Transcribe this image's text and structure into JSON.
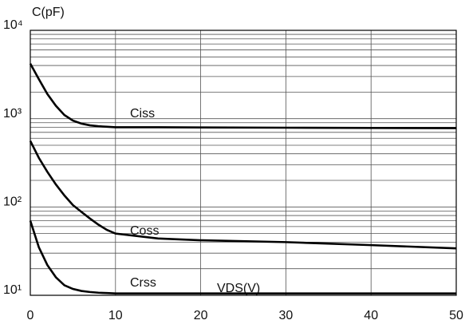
{
  "chart_data": {
    "type": "line",
    "ylabel": "C(pF)",
    "xlabel": "VDS(V)",
    "x": [
      0,
      1,
      2,
      3,
      4,
      5,
      6,
      7,
      8,
      9,
      10,
      15,
      20,
      30,
      40,
      50
    ],
    "series": [
      {
        "name": "Ciss",
        "color": "#000000",
        "values": [
          4200,
          2800,
          1900,
          1400,
          1100,
          950,
          880,
          840,
          820,
          810,
          800,
          800,
          795,
          790,
          785,
          780
        ]
      },
      {
        "name": "Coss",
        "color": "#000000",
        "values": [
          560,
          360,
          250,
          180,
          135,
          105,
          88,
          74,
          63,
          55,
          50,
          44,
          42,
          40,
          37,
          34
        ]
      },
      {
        "name": "Crss",
        "color": "#000000",
        "values": [
          70,
          35,
          22,
          16,
          13,
          11.8,
          11.2,
          10.9,
          10.7,
          10.6,
          10.5,
          10.5,
          10.5,
          10.5,
          10.5,
          10.5
        ]
      }
    ],
    "xlim": [
      0,
      50
    ],
    "xticks": [
      0,
      10,
      20,
      30,
      40,
      50
    ],
    "ylim": [
      10,
      10000
    ],
    "yticks": [
      {
        "value": 10,
        "label": "10¹"
      },
      {
        "value": 100,
        "label": "10²"
      },
      {
        "value": 1000,
        "label": "10³"
      },
      {
        "value": 10000,
        "label": "10⁴"
      }
    ],
    "log_y": true,
    "grid": true,
    "minor_grid": true
  }
}
